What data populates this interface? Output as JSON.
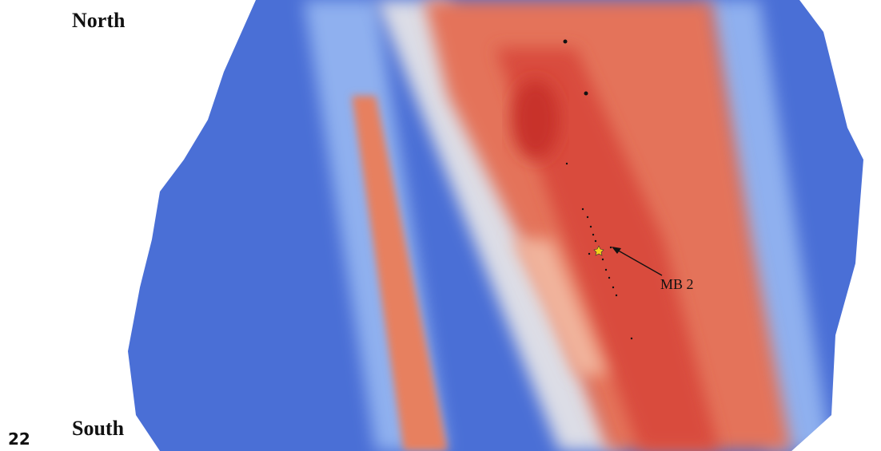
{
  "labels": {
    "north": "North",
    "south": "South",
    "marker": "MB 2",
    "page_number": "22"
  }
}
